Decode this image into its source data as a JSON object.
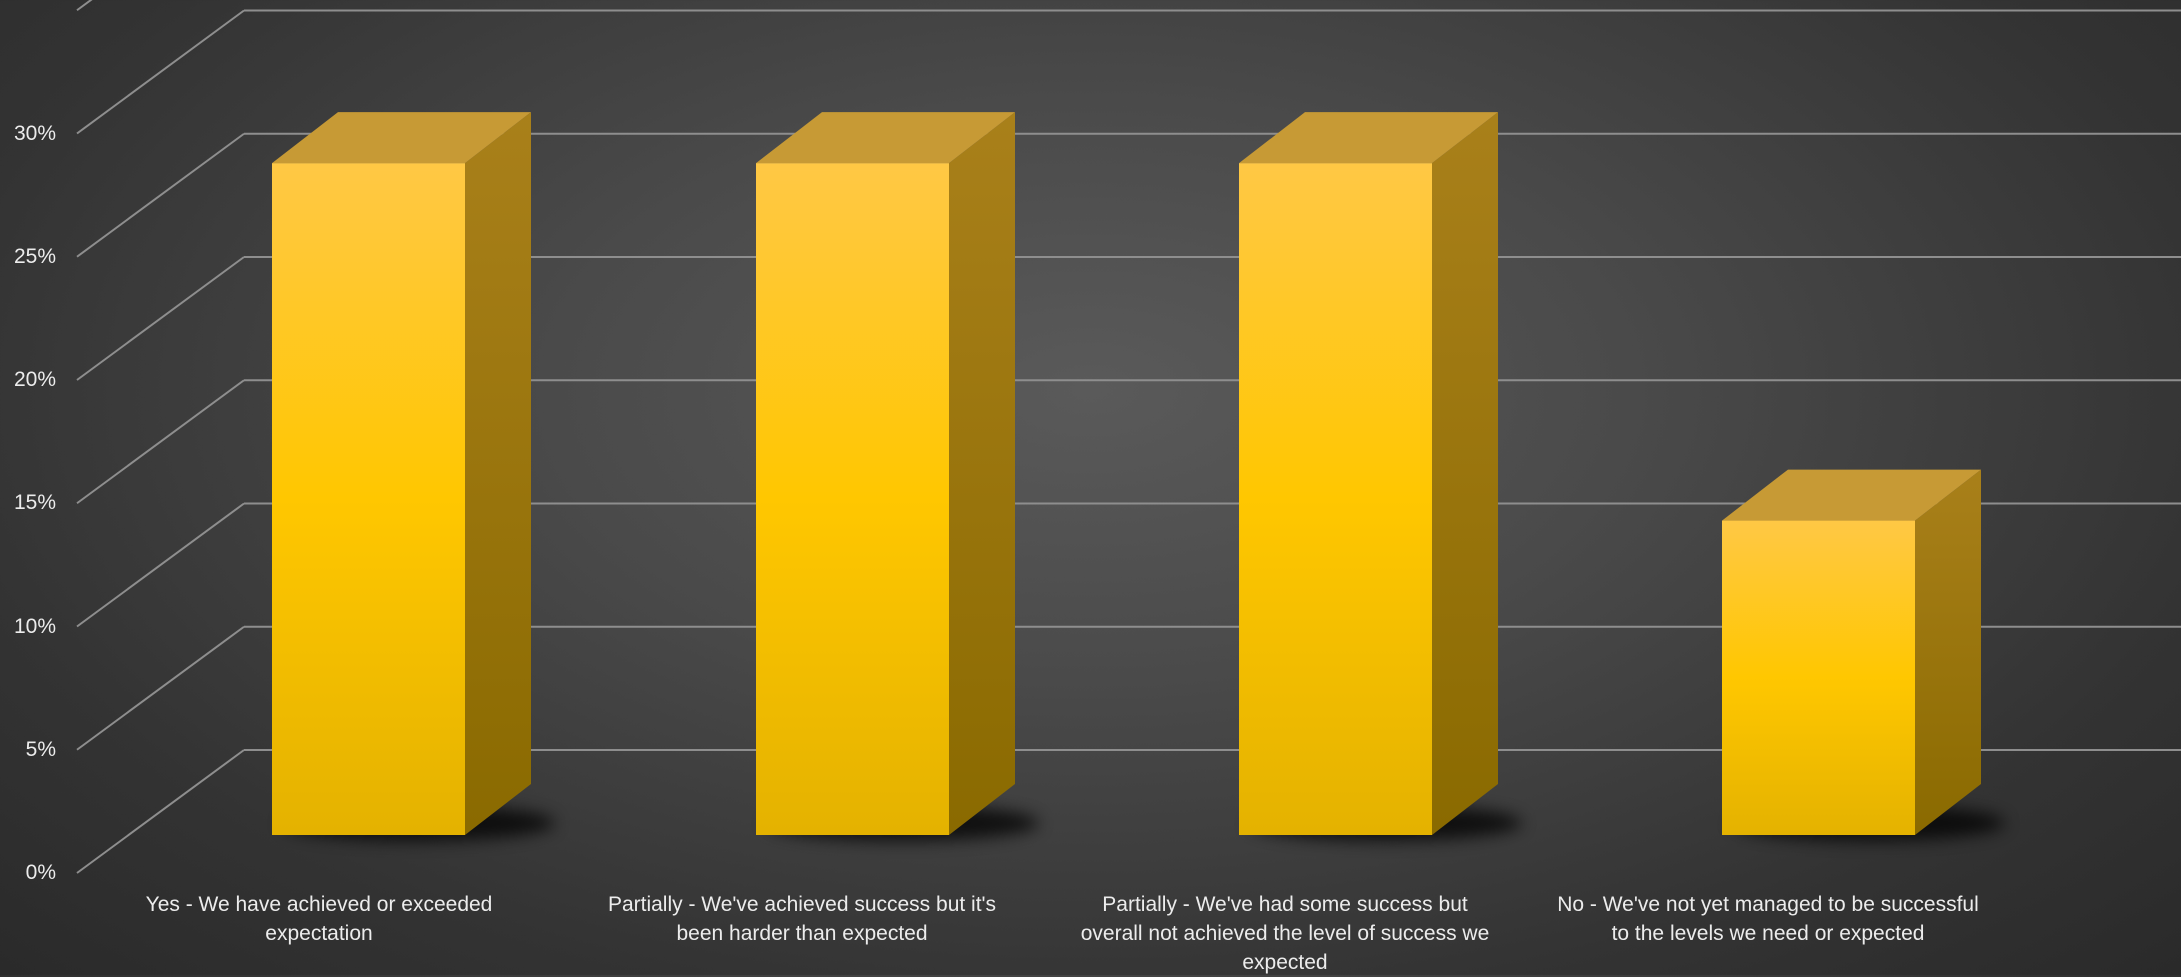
{
  "chart_data": {
    "type": "bar",
    "title": "",
    "xlabel": "",
    "ylabel": "",
    "categories": [
      "Yes - We have achieved or exceeded expectation",
      "Partially - We've achieved success but it's been harder than expected",
      "Partially - We've had some success but overall not achieved the level of success we expected",
      "No - We've not yet managed to be successful to the levels we need or expected"
    ],
    "values": [
      29,
      29,
      29,
      14.5
    ],
    "ylim": [
      0,
      35
    ],
    "yticks": [
      "0%",
      "5%",
      "10%",
      "15%",
      "20%",
      "25%",
      "30%"
    ],
    "grid": true,
    "legend": "none",
    "style": "3d-column",
    "colors": {
      "bar_front_top": "#ffc845",
      "bar_front_mid": "#ffc700",
      "bar_front_bottom": "#e4b200",
      "bar_top": "#c79a35",
      "bar_side": "#9b7a10",
      "grid": "#8e8e8e",
      "text": "#ececec"
    }
  }
}
